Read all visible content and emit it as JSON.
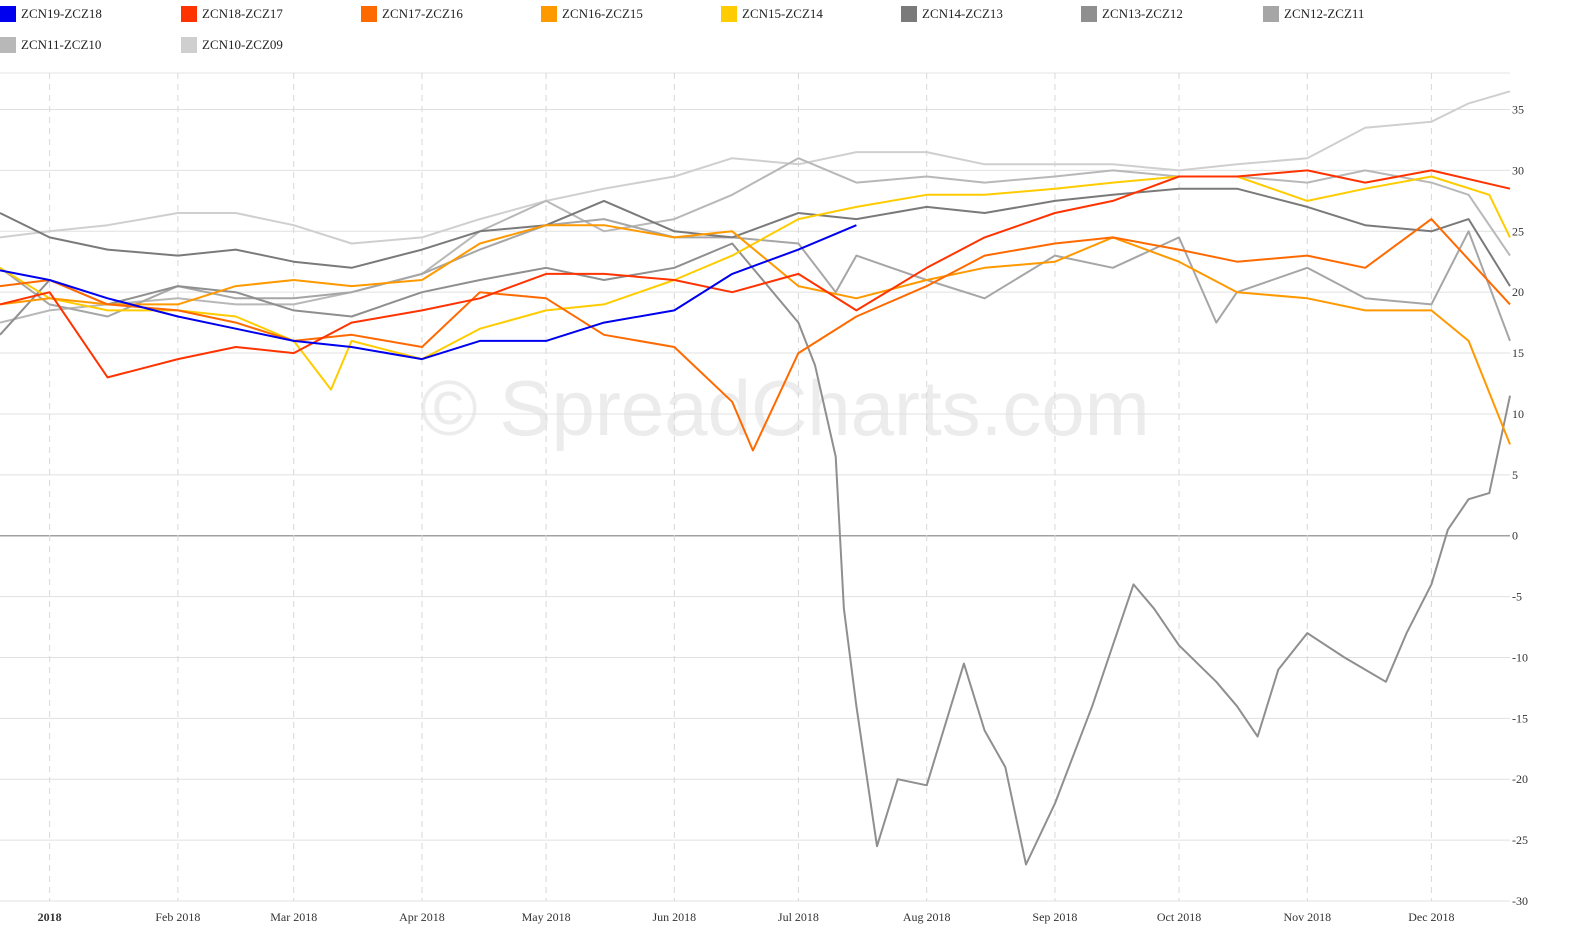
{
  "watermark": "© SpreadCharts.com",
  "legend": [
    {
      "name": "ZCN19-ZCZ18",
      "color": "#0000ee"
    },
    {
      "name": "ZCN18-ZCZ17",
      "color": "#ff3300"
    },
    {
      "name": "ZCN17-ZCZ16",
      "color": "#ff6a00"
    },
    {
      "name": "ZCN16-ZCZ15",
      "color": "#ff9900"
    },
    {
      "name": "ZCN15-ZCZ14",
      "color": "#ffcc00"
    },
    {
      "name": "ZCN14-ZCZ13",
      "color": "#7a7a7a"
    },
    {
      "name": "ZCN13-ZCZ12",
      "color": "#8f8f8f"
    },
    {
      "name": "ZCN12-ZCZ11",
      "color": "#a6a6a6"
    },
    {
      "name": "ZCN11-ZCZ10",
      "color": "#b8b8b8"
    },
    {
      "name": "ZCN10-ZCZ09",
      "color": "#cfcfcf"
    }
  ],
  "chart_data": {
    "type": "line",
    "title": "",
    "xlabel": "",
    "ylabel": "",
    "ylim": [
      -30,
      38
    ],
    "y_ticks": [
      35,
      30,
      25,
      20,
      15,
      10,
      5,
      0,
      -5,
      -10,
      -15,
      -20,
      -25,
      -30
    ],
    "x_domain": [
      "2017-12-20",
      "2018-12-20"
    ],
    "x_ticks": [
      {
        "label": "2018",
        "date": "2018-01-01",
        "bold": true
      },
      {
        "label": "Feb 2018",
        "date": "2018-02-01"
      },
      {
        "label": "Mar 2018",
        "date": "2018-03-01"
      },
      {
        "label": "Apr 2018",
        "date": "2018-04-01"
      },
      {
        "label": "May 2018",
        "date": "2018-05-01"
      },
      {
        "label": "Jun 2018",
        "date": "2018-06-01"
      },
      {
        "label": "Jul 2018",
        "date": "2018-07-01"
      },
      {
        "label": "Aug 2018",
        "date": "2018-08-01"
      },
      {
        "label": "Sep 2018",
        "date": "2018-09-01"
      },
      {
        "label": "Oct 2018",
        "date": "2018-10-01"
      },
      {
        "label": "Nov 2018",
        "date": "2018-11-01"
      },
      {
        "label": "Dec 2018",
        "date": "2018-12-01"
      }
    ],
    "grid": true,
    "legend_position": "top",
    "series": [
      {
        "name": "ZCN19-ZCZ18",
        "color": "#0000ee",
        "x": [
          "2017-12-20",
          "2018-01-01",
          "2018-01-15",
          "2018-02-01",
          "2018-02-15",
          "2018-03-01",
          "2018-03-15",
          "2018-04-01",
          "2018-04-15",
          "2018-05-01",
          "2018-05-15",
          "2018-06-01",
          "2018-06-15",
          "2018-07-01",
          "2018-07-15"
        ],
        "y": [
          21.8,
          21.0,
          19.5,
          18.0,
          17.0,
          16.0,
          15.5,
          14.5,
          16.0,
          16.0,
          17.5,
          18.5,
          21.5,
          23.5,
          25.5
        ]
      },
      {
        "name": "ZCN18-ZCZ17",
        "color": "#ff3300",
        "x": [
          "2017-12-20",
          "2018-01-01",
          "2018-01-15",
          "2018-02-01",
          "2018-02-15",
          "2018-03-01",
          "2018-03-15",
          "2018-04-01",
          "2018-04-15",
          "2018-05-01",
          "2018-05-15",
          "2018-06-01",
          "2018-06-15",
          "2018-07-01",
          "2018-07-15",
          "2018-08-01",
          "2018-08-15",
          "2018-09-01",
          "2018-09-15",
          "2018-10-01",
          "2018-10-15",
          "2018-11-01",
          "2018-11-15",
          "2018-12-01",
          "2018-12-20"
        ],
        "y": [
          19.0,
          20.0,
          13.0,
          14.5,
          15.5,
          15.0,
          17.5,
          18.5,
          19.5,
          21.5,
          21.5,
          21.0,
          20.0,
          21.5,
          18.5,
          22.0,
          24.5,
          26.5,
          27.5,
          29.5,
          29.5,
          30.0,
          29.0,
          30.0,
          28.5
        ]
      },
      {
        "name": "ZCN17-ZCZ16",
        "color": "#ff6a00",
        "x": [
          "2017-12-20",
          "2018-01-01",
          "2018-01-15",
          "2018-02-01",
          "2018-02-15",
          "2018-03-01",
          "2018-03-15",
          "2018-04-01",
          "2018-04-15",
          "2018-05-01",
          "2018-05-15",
          "2018-06-01",
          "2018-06-15",
          "2018-06-20",
          "2018-07-01",
          "2018-07-15",
          "2018-08-01",
          "2018-08-15",
          "2018-09-01",
          "2018-09-15",
          "2018-10-01",
          "2018-10-15",
          "2018-11-01",
          "2018-11-15",
          "2018-12-01",
          "2018-12-20"
        ],
        "y": [
          20.5,
          21.0,
          19.0,
          18.5,
          17.5,
          16.0,
          16.5,
          15.5,
          20.0,
          19.5,
          16.5,
          15.5,
          11.0,
          7.0,
          15.0,
          18.0,
          20.5,
          23.0,
          24.0,
          24.5,
          23.5,
          22.5,
          23.0,
          22.0,
          26.0,
          19.0
        ]
      },
      {
        "name": "ZCN16-ZCZ15",
        "color": "#ff9900",
        "x": [
          "2017-12-20",
          "2018-01-01",
          "2018-01-15",
          "2018-02-01",
          "2018-02-15",
          "2018-03-01",
          "2018-03-15",
          "2018-04-01",
          "2018-04-15",
          "2018-05-01",
          "2018-05-15",
          "2018-06-01",
          "2018-06-15",
          "2018-07-01",
          "2018-07-15",
          "2018-08-01",
          "2018-08-15",
          "2018-09-01",
          "2018-09-15",
          "2018-10-01",
          "2018-10-15",
          "2018-11-01",
          "2018-11-15",
          "2018-12-01",
          "2018-12-10",
          "2018-12-20"
        ],
        "y": [
          19.0,
          19.5,
          19.0,
          19.0,
          20.5,
          21.0,
          20.5,
          21.0,
          24.0,
          25.5,
          25.5,
          24.5,
          25.0,
          20.5,
          19.5,
          21.0,
          22.0,
          22.5,
          24.5,
          22.5,
          20.0,
          19.5,
          18.5,
          18.5,
          16.0,
          7.5
        ]
      },
      {
        "name": "ZCN15-ZCZ14",
        "color": "#ffcc00",
        "x": [
          "2017-12-20",
          "2018-01-01",
          "2018-01-15",
          "2018-02-01",
          "2018-02-15",
          "2018-03-01",
          "2018-03-10",
          "2018-03-15",
          "2018-04-01",
          "2018-04-15",
          "2018-05-01",
          "2018-05-15",
          "2018-06-01",
          "2018-06-15",
          "2018-07-01",
          "2018-07-15",
          "2018-08-01",
          "2018-08-15",
          "2018-09-01",
          "2018-09-15",
          "2018-10-01",
          "2018-10-15",
          "2018-11-01",
          "2018-11-15",
          "2018-12-01",
          "2018-12-15",
          "2018-12-20"
        ],
        "y": [
          22.0,
          19.5,
          18.5,
          18.5,
          18.0,
          16.0,
          12.0,
          16.0,
          14.5,
          17.0,
          18.5,
          19.0,
          21.0,
          23.0,
          26.0,
          27.0,
          28.0,
          28.0,
          28.5,
          29.0,
          29.5,
          29.5,
          27.5,
          28.5,
          29.5,
          28.0,
          24.5
        ]
      },
      {
        "name": "ZCN14-ZCZ13",
        "color": "#7a7a7a",
        "x": [
          "2017-12-20",
          "2018-01-01",
          "2018-01-15",
          "2018-02-01",
          "2018-02-15",
          "2018-03-01",
          "2018-03-15",
          "2018-04-01",
          "2018-04-15",
          "2018-05-01",
          "2018-05-15",
          "2018-06-01",
          "2018-06-15",
          "2018-07-01",
          "2018-07-15",
          "2018-08-01",
          "2018-08-15",
          "2018-09-01",
          "2018-09-15",
          "2018-10-01",
          "2018-10-15",
          "2018-11-01",
          "2018-11-15",
          "2018-12-01",
          "2018-12-10",
          "2018-12-20"
        ],
        "y": [
          26.5,
          24.5,
          23.5,
          23.0,
          23.5,
          22.5,
          22.0,
          23.5,
          25.0,
          25.5,
          27.5,
          25.0,
          24.5,
          26.5,
          26.0,
          27.0,
          26.5,
          27.5,
          28.0,
          28.5,
          28.5,
          27.0,
          25.5,
          25.0,
          26.0,
          20.5
        ]
      },
      {
        "name": "ZCN13-ZCZ12",
        "color": "#8f8f8f",
        "x": [
          "2017-12-20",
          "2018-01-01",
          "2018-01-15",
          "2018-02-01",
          "2018-02-15",
          "2018-03-01",
          "2018-03-15",
          "2018-04-01",
          "2018-04-15",
          "2018-05-01",
          "2018-05-15",
          "2018-06-01",
          "2018-06-15",
          "2018-07-01",
          "2018-07-05",
          "2018-07-10",
          "2018-07-12",
          "2018-07-15",
          "2018-07-20",
          "2018-07-25",
          "2018-08-01",
          "2018-08-10",
          "2018-08-15",
          "2018-08-20",
          "2018-08-25",
          "2018-09-01",
          "2018-09-10",
          "2018-09-15",
          "2018-09-20",
          "2018-09-25",
          "2018-10-01",
          "2018-10-10",
          "2018-10-15",
          "2018-10-20",
          "2018-10-25",
          "2018-11-01",
          "2018-11-10",
          "2018-11-15",
          "2018-11-20",
          "2018-11-25",
          "2018-12-01",
          "2018-12-05",
          "2018-12-10",
          "2018-12-15",
          "2018-12-20"
        ],
        "y": [
          16.5,
          21.0,
          19.0,
          20.5,
          20.0,
          18.5,
          18.0,
          20.0,
          21.0,
          22.0,
          21.0,
          22.0,
          24.0,
          17.5,
          14.0,
          6.5,
          -6.0,
          -14.0,
          -25.5,
          -20.0,
          -20.5,
          -10.5,
          -16.0,
          -19.0,
          -27.0,
          -22.0,
          -14.0,
          -9.0,
          -4.0,
          -6.0,
          -9.0,
          -12.0,
          -14.0,
          -16.5,
          -11.0,
          -8.0,
          -10.0,
          -11.0,
          -12.0,
          -8.0,
          -4.0,
          0.5,
          3.0,
          3.5,
          11.5
        ]
      },
      {
        "name": "ZCN12-ZCZ11",
        "color": "#a6a6a6",
        "x": [
          "2017-12-20",
          "2018-01-01",
          "2018-01-15",
          "2018-02-01",
          "2018-02-15",
          "2018-03-01",
          "2018-03-15",
          "2018-04-01",
          "2018-04-15",
          "2018-05-01",
          "2018-05-15",
          "2018-06-01",
          "2018-06-15",
          "2018-07-01",
          "2018-07-10",
          "2018-07-15",
          "2018-08-01",
          "2018-08-15",
          "2018-09-01",
          "2018-09-15",
          "2018-10-01",
          "2018-10-10",
          "2018-10-15",
          "2018-11-01",
          "2018-11-15",
          "2018-12-01",
          "2018-12-10",
          "2018-12-20"
        ],
        "y": [
          22.0,
          19.0,
          18.0,
          20.5,
          19.5,
          19.5,
          20.0,
          21.5,
          23.5,
          25.5,
          26.0,
          24.5,
          24.5,
          24.0,
          20.0,
          23.0,
          21.0,
          19.5,
          23.0,
          22.0,
          24.5,
          17.5,
          20.0,
          22.0,
          19.5,
          19.0,
          25.0,
          16.0
        ]
      },
      {
        "name": "ZCN11-ZCZ10",
        "color": "#b8b8b8",
        "x": [
          "2017-12-20",
          "2018-01-01",
          "2018-01-15",
          "2018-02-01",
          "2018-02-15",
          "2018-03-01",
          "2018-03-15",
          "2018-04-01",
          "2018-04-15",
          "2018-05-01",
          "2018-05-15",
          "2018-06-01",
          "2018-06-15",
          "2018-07-01",
          "2018-07-15",
          "2018-08-01",
          "2018-08-15",
          "2018-09-01",
          "2018-09-15",
          "2018-10-01",
          "2018-10-15",
          "2018-11-01",
          "2018-11-15",
          "2018-12-01",
          "2018-12-10",
          "2018-12-20"
        ],
        "y": [
          17.5,
          18.5,
          19.0,
          19.5,
          19.0,
          19.0,
          20.0,
          21.5,
          25.0,
          27.5,
          25.0,
          26.0,
          28.0,
          31.0,
          29.0,
          29.5,
          29.0,
          29.5,
          30.0,
          29.5,
          29.5,
          29.0,
          30.0,
          29.0,
          28.0,
          23.0
        ]
      },
      {
        "name": "ZCN10-ZCZ09",
        "color": "#cfcfcf",
        "x": [
          "2017-12-20",
          "2018-01-01",
          "2018-01-15",
          "2018-02-01",
          "2018-02-15",
          "2018-03-01",
          "2018-03-15",
          "2018-04-01",
          "2018-04-15",
          "2018-05-01",
          "2018-05-15",
          "2018-06-01",
          "2018-06-15",
          "2018-07-01",
          "2018-07-15",
          "2018-08-01",
          "2018-08-15",
          "2018-09-01",
          "2018-09-15",
          "2018-10-01",
          "2018-10-15",
          "2018-11-01",
          "2018-11-15",
          "2018-12-01",
          "2018-12-10",
          "2018-12-20"
        ],
        "y": [
          24.5,
          25.0,
          25.5,
          26.5,
          26.5,
          25.5,
          24.0,
          24.5,
          26.0,
          27.5,
          28.5,
          29.5,
          31.0,
          30.5,
          31.5,
          31.5,
          30.5,
          30.5,
          30.5,
          30.0,
          30.5,
          31.0,
          33.5,
          34.0,
          35.5,
          36.5
        ]
      }
    ]
  }
}
